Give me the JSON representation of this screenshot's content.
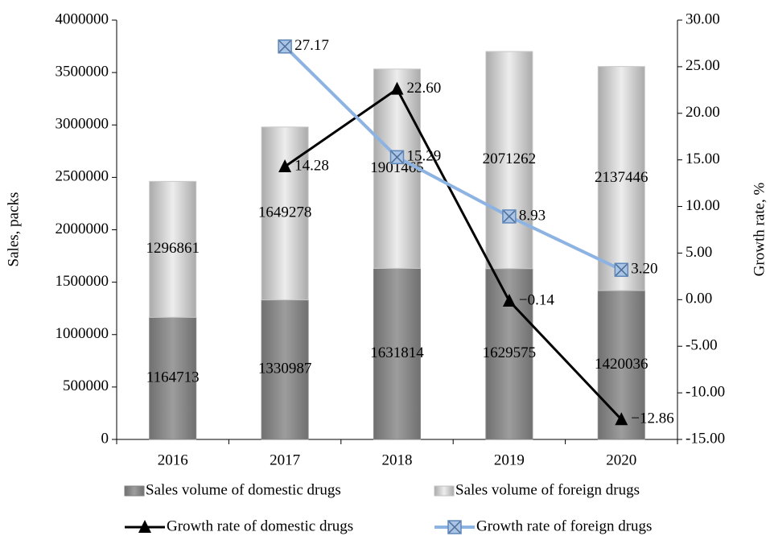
{
  "chart_data": {
    "type": "bar",
    "stacked": true,
    "categories": [
      "2016",
      "2017",
      "2018",
      "2019",
      "2020"
    ],
    "ylabel": "Sales, packs",
    "y2label": "Growth rate, %",
    "ylim": [
      0,
      4000000
    ],
    "yticks": [
      0,
      500000,
      1000000,
      1500000,
      2000000,
      2500000,
      3000000,
      3500000,
      4000000
    ],
    "y2lim": [
      -15,
      30
    ],
    "y2ticks": [
      {
        "value": -15,
        "label": "-15.00"
      },
      {
        "value": -10,
        "label": "-10.00"
      },
      {
        "value": -5,
        "label": "-5.00"
      },
      {
        "value": 0,
        "label": "0.00"
      },
      {
        "value": 5,
        "label": "5.00"
      },
      {
        "value": 10,
        "label": "10.00"
      },
      {
        "value": 15,
        "label": "15.00"
      },
      {
        "value": 20,
        "label": "20.00"
      },
      {
        "value": 25,
        "label": "25.00"
      },
      {
        "value": 30,
        "label": "30.00"
      }
    ],
    "grid": false,
    "legend": "bottom",
    "series": [
      {
        "name": "Sales volume of domestic drugs",
        "type": "bar",
        "color": "#8c8c8c",
        "values": [
          1164713,
          1330987,
          1631814,
          1629575,
          1420036
        ]
      },
      {
        "name": "Sales volume of foreign drugs",
        "type": "bar",
        "color": "#d4d4d4",
        "values": [
          1296861,
          1649278,
          1901465,
          2071262,
          2137446
        ]
      },
      {
        "name": "Growth rate of domestic drugs",
        "type": "line",
        "axis": "y2",
        "color": "#000000",
        "marker": "triangle",
        "values": [
          null,
          14.28,
          22.6,
          -0.14,
          -12.86
        ],
        "value_labels": [
          null,
          "14.28",
          "22.60",
          "−0.14",
          "−12.86"
        ]
      },
      {
        "name": "Growth rate of foreign drugs",
        "type": "line",
        "axis": "y2",
        "color": "#8db3e2",
        "marker": "square",
        "values": [
          null,
          27.17,
          15.29,
          8.93,
          3.2
        ],
        "value_labels": [
          null,
          "27.17",
          "15.29",
          "8.93",
          "3.20"
        ]
      }
    ]
  }
}
